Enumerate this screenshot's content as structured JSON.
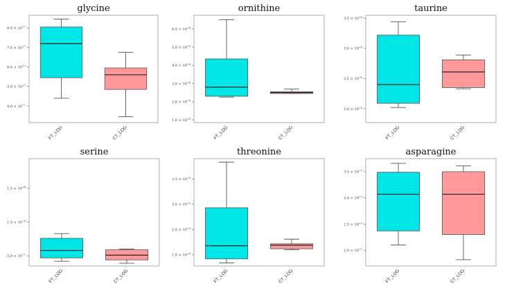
{
  "chart_data": [
    {
      "type": "box",
      "title": "glycine",
      "categories": [
        "FT_LOG",
        "CT_LOG"
      ],
      "colors": [
        "#00e5e5",
        "#ff9999"
      ],
      "ylim": [
        31500000.0,
        86500000.0
      ],
      "ticks": [
        40000000.0,
        50000000.0,
        60000000.0,
        70000000.0,
        80000000.0
      ],
      "tick_labels": [
        "4.0 × 10^+7",
        "5.0 × 10^+7",
        "6.0 × 10^+7",
        "7.0 × 10^+7",
        "8.0 × 10^+7"
      ],
      "boxes": [
        {
          "min": 44000000.0,
          "q1": 54500000.0,
          "median": 72000000.0,
          "q3": 80500000.0,
          "max": 84500000.0
        },
        {
          "min": 34500000.0,
          "q1": 48500000.0,
          "median": 56000000.0,
          "q3": 59500000.0,
          "max": 67500000.0
        }
      ]
    },
    {
      "type": "box",
      "title": "ornithine",
      "categories": [
        "FT_LOG",
        "CT_LOG"
      ],
      "colors": [
        "#00e5e5",
        "#ff9999"
      ],
      "ylim": [
        85000000.0,
        675000000.0
      ],
      "ticks": [
        100000000.0,
        200000000.0,
        300000000.0,
        400000000.0,
        500000000.0,
        600000000.0
      ],
      "tick_labels": [
        "1.0 × 10^+8",
        "2.0 × 10^+8",
        "3.0 × 10^+8",
        "4.0 × 10^+8",
        "5.0 × 10^+8",
        "6.0 × 10^+8"
      ],
      "boxes": [
        {
          "min": 225000000.0,
          "q1": 230000000.0,
          "median": 280000000.0,
          "q3": 435000000.0,
          "max": 650000000.0
        },
        {
          "min": 245000000.0,
          "q1": 245000000.0,
          "median": 250000000.0,
          "q3": 255000000.0,
          "max": 270000000.0
        }
      ]
    },
    {
      "type": "box",
      "title": "taurine",
      "categories": [
        "FT_LOG",
        "CT_LOG"
      ],
      "colors": [
        "#00e5e5",
        "#ff9999"
      ],
      "ylim": [
        177000000.0,
        355000000.0
      ],
      "ticks": [
        200000000.0,
        250000000.0,
        300000000.0,
        350000000.0
      ],
      "tick_labels": [
        "2.0 × 10^+8",
        "2.5 × 10^+8",
        "3.0 × 10^+8",
        "3.5 × 10^+8"
      ],
      "boxes": [
        {
          "min": 202000000.0,
          "q1": 209000000.0,
          "median": 240000000.0,
          "q3": 322000000.0,
          "max": 344000000.0
        },
        {
          "min": 233000000.0,
          "q1": 235000000.0,
          "median": 261000000.0,
          "q3": 281000000.0,
          "max": 289000000.0
        }
      ]
    },
    {
      "type": "box",
      "title": "serine",
      "categories": [
        "FT_LOG",
        "CT_LOG"
      ],
      "colors": [
        "#00e5e5",
        "#ff9999"
      ],
      "ylim": [
        35000000.0,
        194000000.0
      ],
      "ticks": [
        50000000.0,
        100000000.0,
        150000000.0
      ],
      "tick_labels": [
        "5.0 × 10^+7",
        "1.0 × 10^+8",
        "1.5 × 10^+8"
      ],
      "boxes": [
        {
          "min": 42000000.0,
          "q1": 47000000.0,
          "median": 58000000.0,
          "q3": 76000000.0,
          "max": 83000000.0
        },
        {
          "min": 39000000.0,
          "q1": 44000000.0,
          "median": 51000000.0,
          "q3": 59000000.0,
          "max": 60000000.0
        }
      ]
    },
    {
      "type": "box",
      "title": "threonine",
      "categories": [
        "FT_LOG",
        "CT_LOG"
      ],
      "colors": [
        "#00e5e5",
        "#ff9999"
      ],
      "ylim": [
        780000000.0,
        2900000000.0
      ],
      "ticks": [
        1000000000.0,
        1500000000.0,
        2000000000.0,
        2500000000.0
      ],
      "tick_labels": [
        "1.0 × 10^+9",
        "1.5 × 10^+9",
        "2.0 × 10^+9",
        "2.5 × 10^+9"
      ],
      "boxes": [
        {
          "min": 840000000.0,
          "q1": 920000000.0,
          "median": 1180000000.0,
          "q3": 1930000000.0,
          "max": 2830000000.0
        },
        {
          "min": 1100000000.0,
          "q1": 1120000000.0,
          "median": 1190000000.0,
          "q3": 1220000000.0,
          "max": 1310000000.0
        }
      ]
    },
    {
      "type": "box",
      "title": "asparagine",
      "categories": [
        "FT_LOG",
        "CT_LOG"
      ],
      "colors": [
        "#00e5e5",
        "#ff9999"
      ],
      "ylim": [
        17000000.0,
        37500000.0
      ],
      "ticks": [
        20000000.0,
        25000000.0,
        30000000.0,
        35000000.0
      ],
      "tick_labels": [
        "2.0 × 10^+7",
        "2.5 × 10^+7",
        "3.0 × 10^+7",
        "3.5 × 10^+7"
      ],
      "boxes": [
        {
          "min": 21000000.0,
          "q1": 23700000.0,
          "median": 30700000.0,
          "q3": 34900000.0,
          "max": 36600000.0
        },
        {
          "min": 18200000.0,
          "q1": 23000000.0,
          "median": 30700000.0,
          "q3": 35000000.0,
          "max": 36100000.0
        }
      ]
    }
  ]
}
